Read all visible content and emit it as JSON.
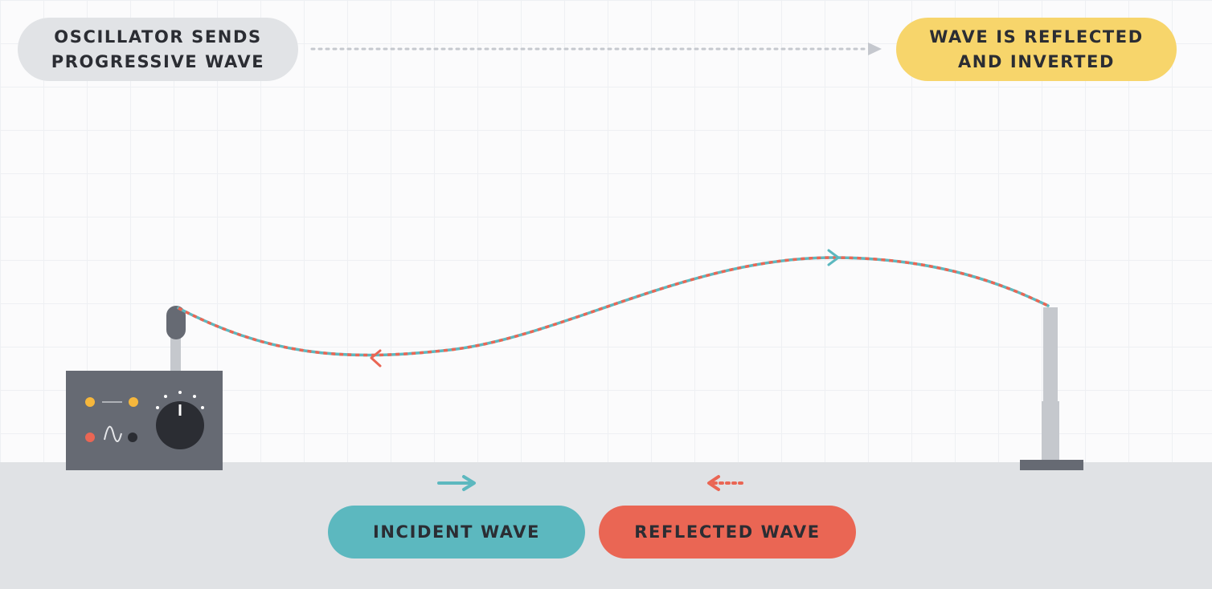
{
  "callouts": {
    "left": {
      "line1": "OSCILLATOR SENDS",
      "line2": "PROGRESSIVE WAVE"
    },
    "right": {
      "line1": "WAVE IS REFLECTED",
      "line2": "AND INVERTED"
    }
  },
  "legend": {
    "incident": {
      "label": "INCIDENT WAVE",
      "color": "#5cb8bf",
      "arrow_style": "solid"
    },
    "reflected": {
      "label": "REFLECTED WAVE",
      "color": "#ea6654",
      "arrow_style": "dotted"
    }
  },
  "colors": {
    "oscillator_body": "#666a73",
    "knob": "#2b2d33",
    "indicator_yellow": "#f6b73c",
    "indicator_red": "#ea6654",
    "post": "#c5c8cd",
    "base": "#666a73",
    "callout_left_bg": "#e1e3e6",
    "callout_right_bg": "#f7d56b",
    "floor": "#e0e2e5"
  },
  "icons": [
    "dotted-arrow-right-icon",
    "sine-wave-icon",
    "dial-knob-icon",
    "arrow-right-icon",
    "arrow-left-dotted-icon"
  ]
}
